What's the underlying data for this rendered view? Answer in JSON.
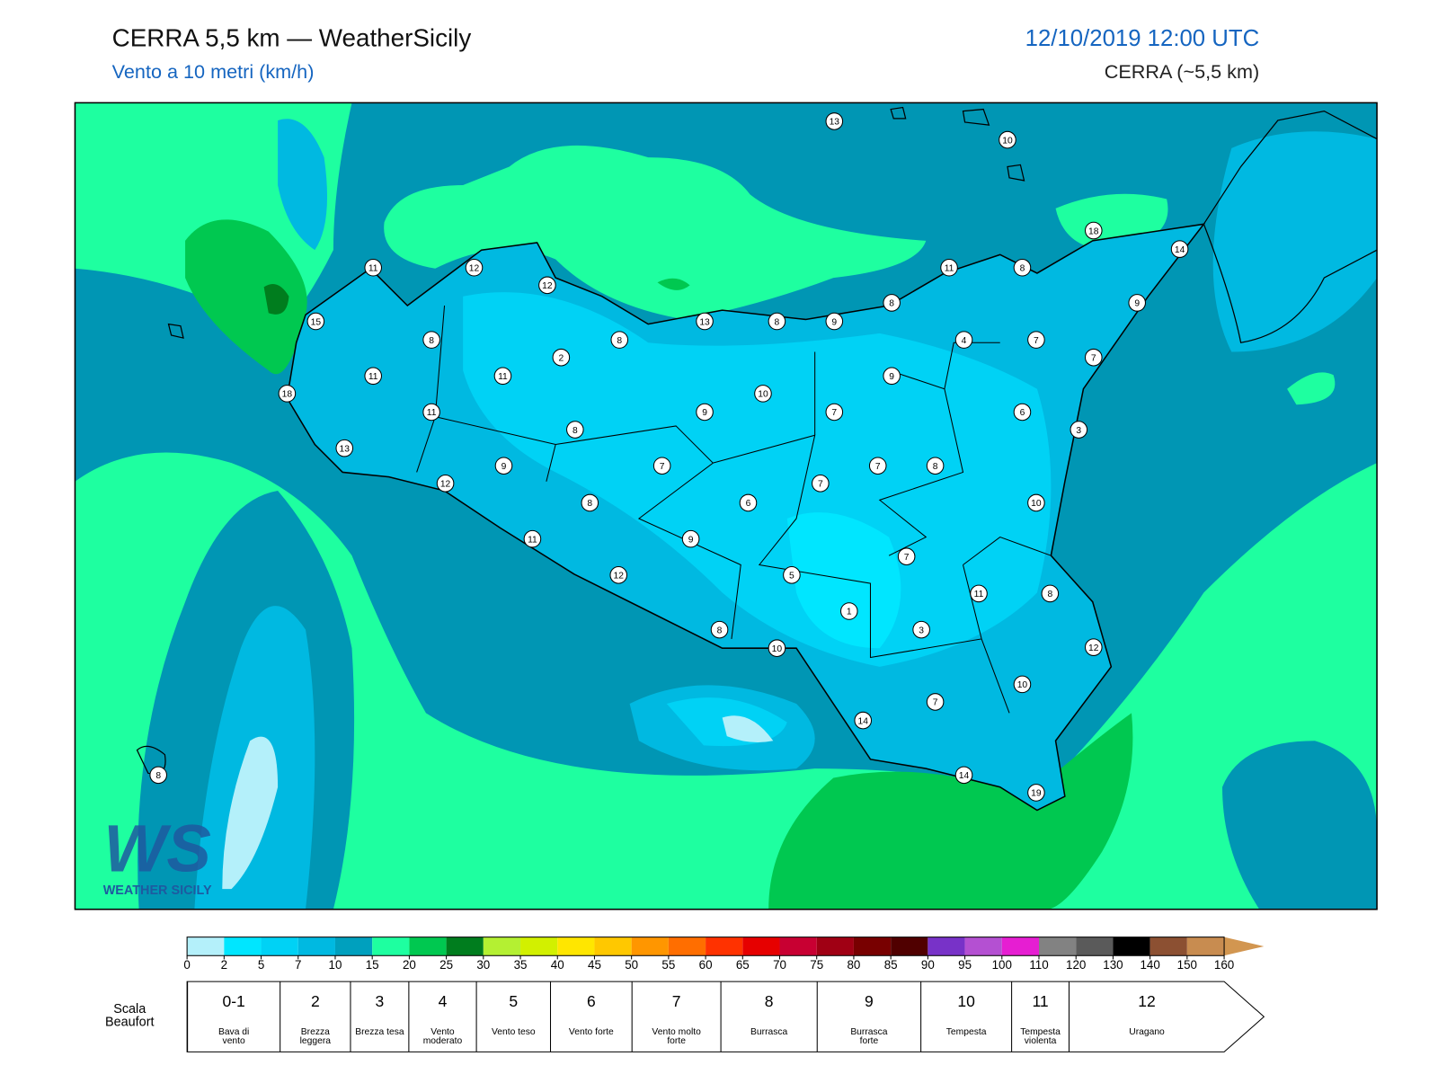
{
  "header": {
    "title": "CERRA 5,5 km — WeatherSicily",
    "subtitle": "Vento a 10 metri (km/h)",
    "datetime": "12/10/2019 12:00 UTC",
    "model": "CERRA (~5,5 km)"
  },
  "stations": {
    "values": [
      13,
      10,
      18,
      14,
      11,
      12,
      12,
      11,
      8,
      8,
      9,
      15,
      13,
      8,
      9,
      8,
      8,
      4,
      7,
      7,
      2,
      11,
      11,
      9,
      18,
      10,
      9,
      7,
      6,
      11,
      8,
      3,
      13,
      9,
      7,
      7,
      8,
      12,
      7,
      8,
      6,
      10,
      11,
      9,
      7,
      5,
      12,
      11,
      8,
      1,
      3,
      8,
      10,
      12,
      10,
      7,
      14,
      8,
      14,
      19
    ]
  },
  "colorbar": {
    "ticks": [
      0,
      2,
      5,
      7,
      10,
      15,
      20,
      25,
      30,
      35,
      40,
      45,
      50,
      55,
      60,
      65,
      70,
      75,
      80,
      85,
      90,
      95,
      100,
      110,
      120,
      130,
      140,
      150,
      160
    ],
    "colors": [
      "#b4f0fa",
      "#00e6ff",
      "#00d2f5",
      "#00b9e1",
      "#00a0be",
      "#1effa0",
      "#00c850",
      "#007d1e",
      "#b4f032",
      "#d2f000",
      "#ffe600",
      "#ffc800",
      "#ff9600",
      "#ff6e00",
      "#ff3200",
      "#e60000",
      "#c80032",
      "#a00014",
      "#780000",
      "#500000",
      "#7832c8",
      "#b450d2",
      "#e61ed2",
      "#828282",
      "#5a5a5a",
      "#000000",
      "#8c5032",
      "#c88c50",
      "#d29650"
    ]
  },
  "beaufort": {
    "label": "Scala Beaufort",
    "scale": [
      {
        "force": "0-1",
        "description": "Bava di vento"
      },
      {
        "force": "2",
        "description": "Brezza leggera"
      },
      {
        "force": "3",
        "description": "Brezza tesa"
      },
      {
        "force": "4",
        "description": "Vento moderato"
      },
      {
        "force": "5",
        "description": "Vento teso"
      },
      {
        "force": "6",
        "description": "Vento forte"
      },
      {
        "force": "7",
        "description": "Vento molto forte"
      },
      {
        "force": "8",
        "description": "Burrasca"
      },
      {
        "force": "9",
        "description": "Burrasca forte"
      },
      {
        "force": "10",
        "description": "Tempesta"
      },
      {
        "force": "11",
        "description": "Tempesta violenta"
      },
      {
        "force": "12",
        "description": "Uragano"
      }
    ]
  },
  "logo": {
    "mark": "WS",
    "text": "WEATHER SICILY"
  }
}
